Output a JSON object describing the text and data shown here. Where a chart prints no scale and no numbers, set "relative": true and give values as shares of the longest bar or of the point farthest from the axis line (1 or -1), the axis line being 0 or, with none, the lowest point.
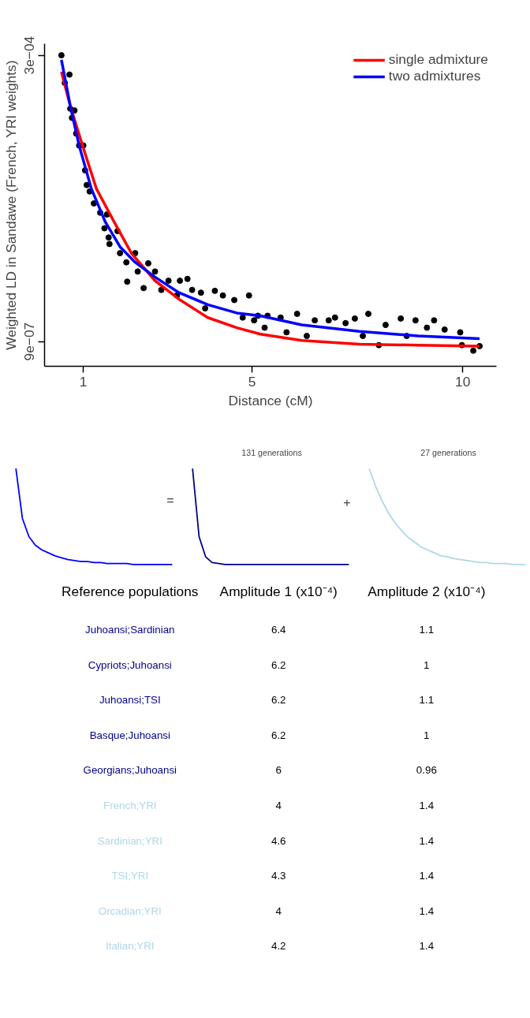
{
  "chart_data": [
    {
      "type": "scatter",
      "xlabel": "Distance (cM)",
      "ylabel": "Weighted LD in Sandawe (French, YRI weights)",
      "xlim": [
        0.08,
        10.8
      ],
      "ylim": [
        -2.5e-05,
        0.000312
      ],
      "xticks": [
        1,
        5,
        10
      ],
      "yticks": [
        {
          "value": 0.0003,
          "label": "3e−04"
        },
        {
          "value": 9e-07,
          "label": "9e−07"
        }
      ],
      "grid": false,
      "legend": "top right",
      "series": [
        {
          "type": "scatter",
          "marker": "circle",
          "color": "#000000",
          "x": [
            0.48,
            0.67,
            0.56,
            0.69,
            0.79,
            0.73,
            0.83,
            0.9,
            1.0,
            1.04,
            1.08,
            1.15,
            1.25,
            1.4,
            1.56,
            1.5,
            1.6,
            1.62,
            1.81,
            1.87,
            2.02,
            2.04,
            2.23,
            2.29,
            2.43,
            2.54,
            2.7,
            2.85,
            3.02,
            3.29,
            3.47,
            3.22,
            3.58,
            3.79,
            3.89,
            4.12,
            4.31,
            4.58,
            4.93,
            4.78,
            5.05,
            5.14,
            5.37,
            5.3,
            5.68,
            6.07,
            5.82,
            6.3,
            6.49,
            6.82,
            6.97,
            7.22,
            7.44,
            7.76,
            7.63,
            8.01,
            8.17,
            8.53,
            8.88,
            8.67,
            9.15,
            9.32,
            9.57,
            9.94,
            9.98,
            10.25,
            10.4
          ],
          "values": [
            0.0003,
            0.0002798,
            0.0002711,
            0.0002442,
            0.0002423,
            0.0002346,
            0.0002182,
            0.0002057,
            0.0002057,
            0.0001798,
            0.0001644,
            0.0001577,
            0.0001452,
            0.0001355,
            0.0001336,
            0.0001192,
            0.0001096,
            0.0001028,
            0.0001163,
            9.32e-05,
            8.36e-05,
            6.34e-05,
            9.32e-05,
            7.4e-05,
            5.67e-05,
            8.26e-05,
            7.4e-05,
            5.48e-05,
            6.44e-05,
            6.44e-05,
            6.63e-05,
            4.9e-05,
            5.48e-05,
            5.19e-05,
            3.55e-05,
            5.38e-05,
            4.9e-05,
            4.42e-05,
            4.9e-05,
            2.59e-05,
            2.3e-05,
            2.78e-05,
            2.78e-05,
            1.53e-05,
            2.59e-05,
            2.98e-05,
            1.05e-05,
            6.7e-06,
            2.3e-05,
            2.3e-05,
            2.59e-05,
            2.01e-05,
            2.49e-05,
            2.98e-05,
            6.7e-06,
            -2.9e-06,
            1.82e-05,
            2.49e-05,
            2.3e-05,
            6.7e-06,
            1.53e-05,
            2.3e-05,
            1.34e-05,
            1.05e-05,
            -2.9e-06,
            -8.7e-06,
            -3.9e-06
          ]
        },
        {
          "type": "line",
          "marker": "none",
          "name": "single admixture",
          "color": "#ff0000",
          "x": [
            0.48,
            0.69,
            0.98,
            1.31,
            1.73,
            2.14,
            2.7,
            3.27,
            3.95,
            4.64,
            5.2,
            6.18,
            7.55,
            8.94,
            10.4
          ],
          "values": [
            0.0002827,
            0.0002471,
            0.0002057,
            0.0001605,
            0.0001259,
            9.32e-05,
            6.44e-05,
            4.51e-05,
            2.59e-05,
            1.53e-05,
            8.6e-06,
            1.9e-06,
            -2e-06,
            -2.9e-06,
            -3.9e-06
          ]
        },
        {
          "type": "line",
          "marker": "none",
          "name": "two admixtures",
          "color": "#0000ff",
          "x": [
            0.48,
            0.69,
            0.9,
            1.19,
            1.52,
            1.87,
            2.23,
            2.7,
            3.27,
            3.95,
            4.64,
            5.2,
            6.18,
            7.55,
            8.94,
            10.4
          ],
          "values": [
            0.0002952,
            0.0002471,
            0.0002057,
            0.0001605,
            0.0001259,
            9.99e-05,
            8.36e-05,
            6.82e-05,
            5.19e-05,
            3.94e-05,
            3.07e-05,
            2.78e-05,
            1.82e-05,
            1.15e-05,
            6.7e-06,
            3.8e-06
          ]
        }
      ]
    },
    {
      "type": "line",
      "relative": true,
      "annotations": [
        "="
      ],
      "categories": [
        null,
        null,
        null,
        null,
        null,
        null,
        null,
        null,
        null,
        null,
        null,
        null,
        null,
        null,
        null,
        null,
        null,
        null,
        null,
        null,
        null,
        null,
        null,
        null,
        null
      ],
      "series": [
        {
          "color": "#0000ff",
          "values": [
            1,
            0.48,
            0.29,
            0.2,
            0.15,
            0.12,
            0.09,
            0.07,
            0.05,
            0.04,
            0.03,
            0.03,
            0.02,
            0.02,
            0.01,
            0.01,
            0.01,
            0.01,
            0,
            0,
            0,
            0,
            0,
            0,
            0
          ]
        }
      ]
    },
    {
      "type": "line",
      "relative": true,
      "title": "131 generations",
      "annotations": [
        "+"
      ],
      "categories": [
        null,
        null,
        null,
        null,
        null,
        null,
        null,
        null,
        null,
        null,
        null,
        null,
        null,
        null,
        null,
        null,
        null,
        null,
        null,
        null,
        null,
        null,
        null,
        null,
        null
      ],
      "series": [
        {
          "color": "#00008b",
          "values": [
            1,
            0.29,
            0.08,
            0.02,
            0.01,
            0,
            0,
            0,
            0,
            0,
            0,
            0,
            0,
            0,
            0,
            0,
            0,
            0,
            0,
            0,
            0,
            0,
            0,
            0,
            0
          ]
        }
      ]
    },
    {
      "type": "line",
      "relative": true,
      "title": "27 generations",
      "categories": [
        null,
        null,
        null,
        null,
        null,
        null,
        null,
        null,
        null,
        null,
        null,
        null,
        null,
        null,
        null,
        null,
        null,
        null,
        null,
        null,
        null,
        null,
        null,
        null,
        null
      ],
      "series": [
        {
          "color": "#add8e6",
          "values": [
            1,
            0.81,
            0.66,
            0.53,
            0.43,
            0.35,
            0.28,
            0.23,
            0.18,
            0.15,
            0.12,
            0.09,
            0.08,
            0.06,
            0.05,
            0.04,
            0.03,
            0.02,
            0.02,
            0.01,
            0.01,
            0.01,
            0,
            0,
            0
          ]
        }
      ]
    },
    {
      "type": "other",
      "ylabel": "Reference populations",
      "data_labels": true,
      "categories": [
        "Juhoansi;Sardinian",
        "Cypriots;Juhoansi",
        "Juhoansi;TSI",
        "Basque;Juhoansi",
        "Georgians;Juhoansi",
        "French;YRI",
        "Sardinian;YRI",
        "TSI;YRI",
        "Orcadian;YRI",
        "Italian;YRI"
      ],
      "colors": [
        "#00008b",
        "#00008b",
        "#00008b",
        "#00008b",
        "#00008b",
        "#add8e6",
        "#add8e6",
        "#add8e6",
        "#add8e6",
        "#add8e6"
      ],
      "series": [
        {
          "name": "Amplitude 1 (x10⁻⁴)",
          "values": [
            6.4,
            6.2,
            6.2,
            6.2,
            6,
            4,
            4.6,
            4.3,
            4,
            4.2
          ]
        },
        {
          "name": "Amplitude 2 (x10⁻⁴)",
          "values": [
            1.1,
            1,
            1.1,
            1,
            0.96,
            1.4,
            1.4,
            1.4,
            1.4,
            1.4
          ]
        }
      ]
    }
  ]
}
